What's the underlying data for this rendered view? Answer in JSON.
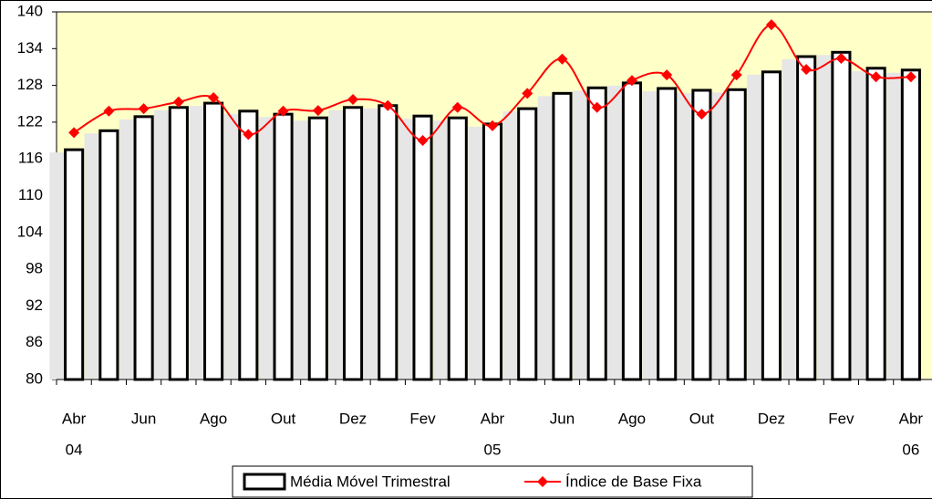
{
  "chart_data": {
    "type": "bar_line",
    "categories": [
      "Abr",
      null,
      "Jun",
      null,
      "Ago",
      null,
      "Out",
      null,
      "Dez",
      null,
      "Fev",
      null,
      "Abr",
      null,
      "Jun",
      null,
      "Ago",
      null,
      "Out",
      null,
      "Dez",
      null,
      "Fev",
      null,
      "Abr"
    ],
    "category_years": [
      "04",
      null,
      null,
      null,
      null,
      null,
      null,
      null,
      null,
      null,
      null,
      null,
      "05",
      null,
      null,
      null,
      null,
      null,
      null,
      null,
      null,
      null,
      null,
      null,
      "06"
    ],
    "series": [
      {
        "name": "Média Móvel Trimestral",
        "type": "bar",
        "color": "#ffffff",
        "values": [
          117.5,
          120.6,
          122.9,
          124.4,
          125.1,
          123.8,
          123.3,
          122.7,
          124.4,
          124.7,
          123.0,
          122.7,
          121.7,
          124.2,
          126.7,
          127.6,
          128.4,
          127.5,
          127.2,
          127.3,
          130.2,
          132.7,
          133.4,
          130.8,
          130.5
        ]
      },
      {
        "name": "Índice de Base Fixa",
        "type": "line",
        "color": "#ff0000",
        "values": [
          120.3,
          123.8,
          124.2,
          125.3,
          126.0,
          120.0,
          123.8,
          123.9,
          125.7,
          124.7,
          119.0,
          124.4,
          121.4,
          126.7,
          132.3,
          124.4,
          128.8,
          129.7,
          123.3,
          129.7,
          137.9,
          130.6,
          132.4,
          129.4,
          129.4
        ]
      }
    ],
    "ylim": [
      80,
      140
    ],
    "yticks": [
      80,
      86,
      92,
      98,
      104,
      110,
      116,
      122,
      128,
      134,
      140
    ],
    "legend": "bottom",
    "plot_background": "#ffffc8"
  }
}
